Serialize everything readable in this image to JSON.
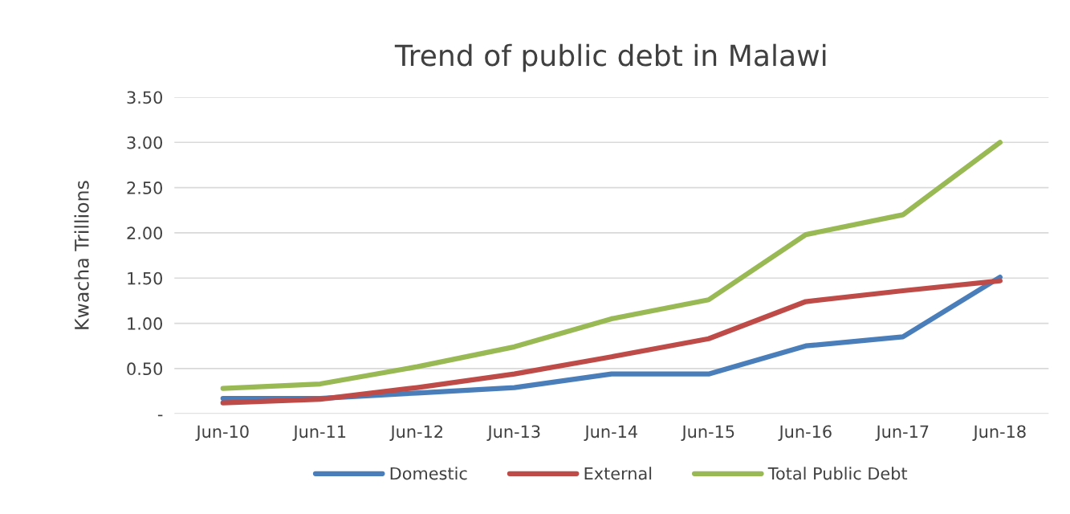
{
  "chart_data": {
    "type": "line",
    "title": "Trend of public debt in Malawi",
    "ylabel": "Kwacha Trillions",
    "categories": [
      "Jun-10",
      "Jun-11",
      "Jun-12",
      "Jun-13",
      "Jun-14",
      "Jun-15",
      "Jun-16",
      "Jun-17",
      "Jun-18"
    ],
    "series": [
      {
        "name": "Domestic",
        "color": "#4a7ebb",
        "values": [
          0.17,
          0.17,
          0.23,
          0.29,
          0.44,
          0.44,
          0.75,
          0.85,
          1.51
        ]
      },
      {
        "name": "External",
        "color": "#be4b48",
        "values": [
          0.12,
          0.16,
          0.29,
          0.44,
          0.63,
          0.83,
          1.24,
          1.36,
          1.47
        ]
      },
      {
        "name": "Total Public Debt",
        "color": "#98b954",
        "values": [
          0.28,
          0.33,
          0.52,
          0.74,
          1.05,
          1.26,
          1.98,
          2.2,
          3.0
        ]
      }
    ],
    "ylim": [
      0,
      3.5
    ],
    "yticks": [
      {
        "value": 0,
        "label": "-"
      },
      {
        "value": 0.5,
        "label": "0.50"
      },
      {
        "value": 1,
        "label": "1.00"
      },
      {
        "value": 1.5,
        "label": "1.50"
      },
      {
        "value": 2,
        "label": "2.00"
      },
      {
        "value": 2.5,
        "label": "2.50"
      },
      {
        "value": 3,
        "label": "3.00"
      },
      {
        "value": 3.5,
        "label": "3.50"
      }
    ],
    "grid": "y",
    "legend": "bottom",
    "marker": "none",
    "line_style": "solid"
  }
}
